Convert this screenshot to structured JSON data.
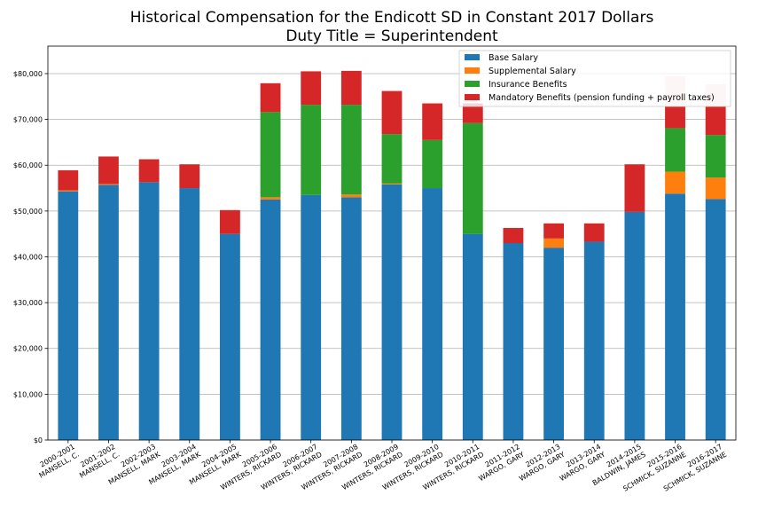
{
  "chart_data": {
    "type": "bar",
    "stacked": true,
    "title": "Historical Compensation for the Endicott SD in Constant 2017 Dollars",
    "subtitle": "Duty Title = Superintendent",
    "xlabel": "",
    "ylabel": "",
    "ylim": [
      0,
      86000
    ],
    "yticks": [
      0,
      10000,
      20000,
      30000,
      40000,
      50000,
      60000,
      70000,
      80000
    ],
    "ytick_labels": [
      "$0",
      "$10,000",
      "$20,000",
      "$30,000",
      "$40,000",
      "$50,000",
      "$60,000",
      "$70,000",
      "$80,000"
    ],
    "grid": "horizontal",
    "legend_position": "top-right",
    "categories": [
      [
        "2000-2001",
        "MANSELL, C."
      ],
      [
        "2001-2002",
        "MANSELL, C."
      ],
      [
        "2002-2003",
        "MANSELL, MARK"
      ],
      [
        "2003-2004",
        "MANSELL, MARK"
      ],
      [
        "2004-2005",
        "MANSELL, MARK"
      ],
      [
        "2005-2006",
        "WINTERS, RICKARD"
      ],
      [
        "2006-2007",
        "WINTERS, RICKARD"
      ],
      [
        "2007-2008",
        "WINTERS, RICKARD"
      ],
      [
        "2008-2009",
        "WINTERS, RICKARD"
      ],
      [
        "2009-2010",
        "WINTERS, RICKARD"
      ],
      [
        "2010-2011",
        "WINTERS, RICKARD"
      ],
      [
        "2011-2012",
        "WARGO, GARY"
      ],
      [
        "2012-2013",
        "WARGO, GARY"
      ],
      [
        "2013-2014",
        "WARGO, GARY"
      ],
      [
        "2014-2015",
        "BALDWIN, JAMES"
      ],
      [
        "2015-2016",
        "SCHMICK, SUZANNE"
      ],
      [
        "2016-2017",
        "SCHMICK, SUZANNE"
      ]
    ],
    "series": [
      {
        "name": "Base Salary",
        "color": "#1f77b4",
        "values": [
          54300,
          55700,
          56300,
          55000,
          45000,
          52500,
          53500,
          53000,
          55800,
          55000,
          45000,
          43000,
          42000,
          43300,
          49800,
          53800,
          52600
        ]
      },
      {
        "name": "Supplemental Salary",
        "color": "#ff7f0e",
        "values": [
          200,
          200,
          0,
          0,
          0,
          500,
          0,
          600,
          200,
          0,
          0,
          0,
          2000,
          0,
          0,
          4800,
          4700
        ]
      },
      {
        "name": "Insurance Benefits",
        "color": "#2ca02c",
        "values": [
          0,
          0,
          0,
          0,
          0,
          18600,
          19700,
          19600,
          10800,
          10500,
          24200,
          0,
          0,
          0,
          0,
          9500,
          9300
        ]
      },
      {
        "name": "Mandatory Benefits (pension funding + payroll taxes)",
        "color": "#d62728",
        "values": [
          4400,
          6000,
          5000,
          5200,
          5200,
          6300,
          7300,
          7400,
          9400,
          8000,
          4300,
          3300,
          3300,
          4000,
          10400,
          11300,
          11100
        ]
      }
    ]
  }
}
